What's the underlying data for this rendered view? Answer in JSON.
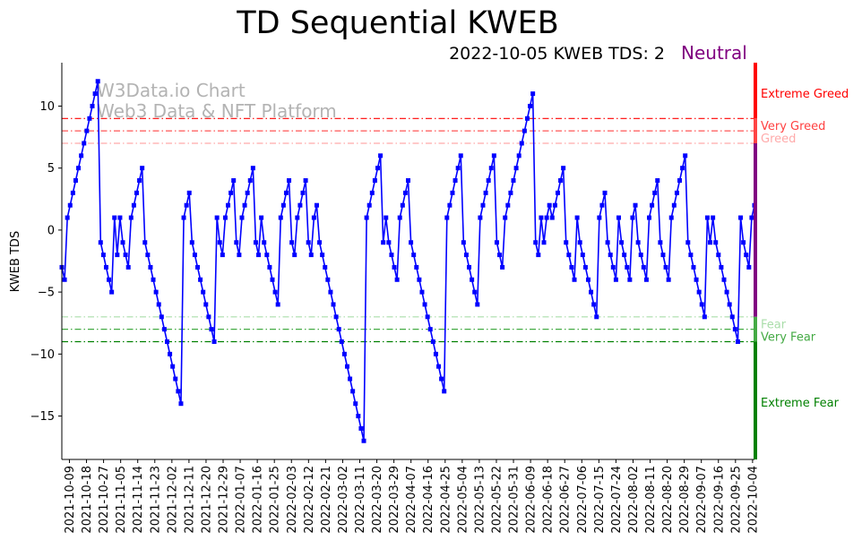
{
  "chart_data": {
    "type": "line",
    "title": "TD Sequential KWEB",
    "subtitle": "2022-10-05 KWEB TDS: 2",
    "state_label": "Neutral",
    "ylabel": "KWEB TDS",
    "ylim": [
      -18.5,
      13.5
    ],
    "yticks": [
      10,
      5,
      0,
      -5,
      -10,
      -15
    ],
    "start_date": "2021-10-05",
    "end_date": "2022-10-05",
    "xtick_labels": [
      "2021-10-09",
      "2021-10-18",
      "2021-10-27",
      "2021-11-05",
      "2021-11-14",
      "2021-11-23",
      "2021-12-02",
      "2021-12-11",
      "2021-12-20",
      "2021-12-29",
      "2022-01-07",
      "2022-01-16",
      "2022-01-25",
      "2022-02-03",
      "2022-02-12",
      "2022-02-21",
      "2022-03-02",
      "2022-03-11",
      "2022-03-20",
      "2022-03-29",
      "2022-04-07",
      "2022-04-16",
      "2022-04-25",
      "2022-05-04",
      "2022-05-13",
      "2022-05-22",
      "2022-05-31",
      "2022-06-09",
      "2022-06-18",
      "2022-06-27",
      "2022-07-06",
      "2022-07-15",
      "2022-07-24",
      "2022-08-02",
      "2022-08-11",
      "2022-08-20",
      "2022-08-29",
      "2022-09-07",
      "2022-09-16",
      "2022-09-25",
      "2022-10-04"
    ],
    "watermark": [
      "W3Data.io Chart",
      "Web3 Data & NFT Platform"
    ],
    "thresholds": [
      {
        "name": "Very Greed",
        "value": 9,
        "color": "#ff0000"
      },
      {
        "name": "Greed",
        "value": 8,
        "color": "#ff5555"
      },
      {
        "name": "Greed",
        "value": 7,
        "color": "#ffaaaa"
      },
      {
        "name": "Fear",
        "value": -7,
        "color": "#aaddaa"
      },
      {
        "name": "Very Fear",
        "value": -8,
        "color": "#44aa44"
      },
      {
        "name": "Extreme Fear",
        "value": -9,
        "color": "#008000"
      }
    ],
    "zone_labels": [
      {
        "text": "Extreme Greed",
        "y": 11,
        "color": "#ff0000"
      },
      {
        "text": "Very Greed",
        "y": 8.4,
        "color": "#ff4040"
      },
      {
        "text": "Greed",
        "y": 7.4,
        "color": "#ffaaaa"
      },
      {
        "text": "Fear",
        "y": -7.6,
        "color": "#aaddaa"
      },
      {
        "text": "Very Fear",
        "y": -8.6,
        "color": "#44aa44"
      },
      {
        "text": "Extreme Fear",
        "y": -13.9,
        "color": "#008000"
      }
    ],
    "band_segments": [
      {
        "from": 13.5,
        "to": 9,
        "color": "#ff0000"
      },
      {
        "from": 9,
        "to": 7,
        "color": "#ff4444"
      },
      {
        "from": 7,
        "to": -7,
        "color": "#800080"
      },
      {
        "from": -7,
        "to": -9,
        "color": "#44aa44"
      },
      {
        "from": -9,
        "to": -18.5,
        "color": "#008000"
      }
    ],
    "series": [
      {
        "name": "KWEB TDS",
        "color": "#0000ff",
        "values": [
          -3,
          -4,
          1,
          2,
          3,
          4,
          5,
          6,
          7,
          8,
          9,
          10,
          11,
          12,
          -1,
          -2,
          -3,
          -4,
          -5,
          1,
          -2,
          1,
          -1,
          -2,
          -3,
          1,
          2,
          3,
          4,
          5,
          -1,
          -2,
          -3,
          -4,
          -5,
          -6,
          -7,
          -8,
          -9,
          -10,
          -11,
          -12,
          -13,
          -14,
          1,
          2,
          3,
          -1,
          -2,
          -3,
          -4,
          -5,
          -6,
          -7,
          -8,
          -9,
          1,
          -1,
          -2,
          1,
          2,
          3,
          4,
          -1,
          -2,
          1,
          2,
          3,
          4,
          5,
          -1,
          -2,
          1,
          -1,
          -2,
          -3,
          -4,
          -5,
          -6,
          1,
          2,
          3,
          4,
          -1,
          -2,
          1,
          2,
          3,
          4,
          -1,
          -2,
          1,
          2,
          -1,
          -2,
          -3,
          -4,
          -5,
          -6,
          -7,
          -8,
          -9,
          -10,
          -11,
          -12,
          -13,
          -14,
          -15,
          -16,
          -17,
          1,
          2,
          3,
          4,
          5,
          6,
          -1,
          1,
          -1,
          -2,
          -3,
          -4,
          1,
          2,
          3,
          4,
          -1,
          -2,
          -3,
          -4,
          -5,
          -6,
          -7,
          -8,
          -9,
          -10,
          -11,
          -12,
          -13,
          1,
          2,
          3,
          4,
          5,
          6,
          -1,
          -2,
          -3,
          -4,
          -5,
          -6,
          1,
          2,
          3,
          4,
          5,
          6,
          -1,
          -2,
          -3,
          1,
          2,
          3,
          4,
          5,
          6,
          7,
          8,
          9,
          10,
          11,
          -1,
          -2,
          1,
          -1,
          1,
          2,
          1,
          2,
          3,
          4,
          5,
          -1,
          -2,
          -3,
          -4,
          1,
          -1,
          -2,
          -3,
          -4,
          -5,
          -6,
          -7,
          1,
          2,
          3,
          -1,
          -2,
          -3,
          -4,
          1,
          -1,
          -2,
          -3,
          -4,
          1,
          2,
          -1,
          -2,
          -3,
          -4,
          1,
          2,
          3,
          4,
          -1,
          -2,
          -3,
          -4,
          1,
          2,
          3,
          4,
          5,
          6,
          -1,
          -2,
          -3,
          -4,
          -5,
          -6,
          -7,
          1,
          -1,
          1,
          -1,
          -2,
          -3,
          -4,
          -5,
          -6,
          -7,
          -8,
          -9,
          1,
          -1,
          -2,
          -3,
          1,
          2
        ]
      }
    ]
  }
}
